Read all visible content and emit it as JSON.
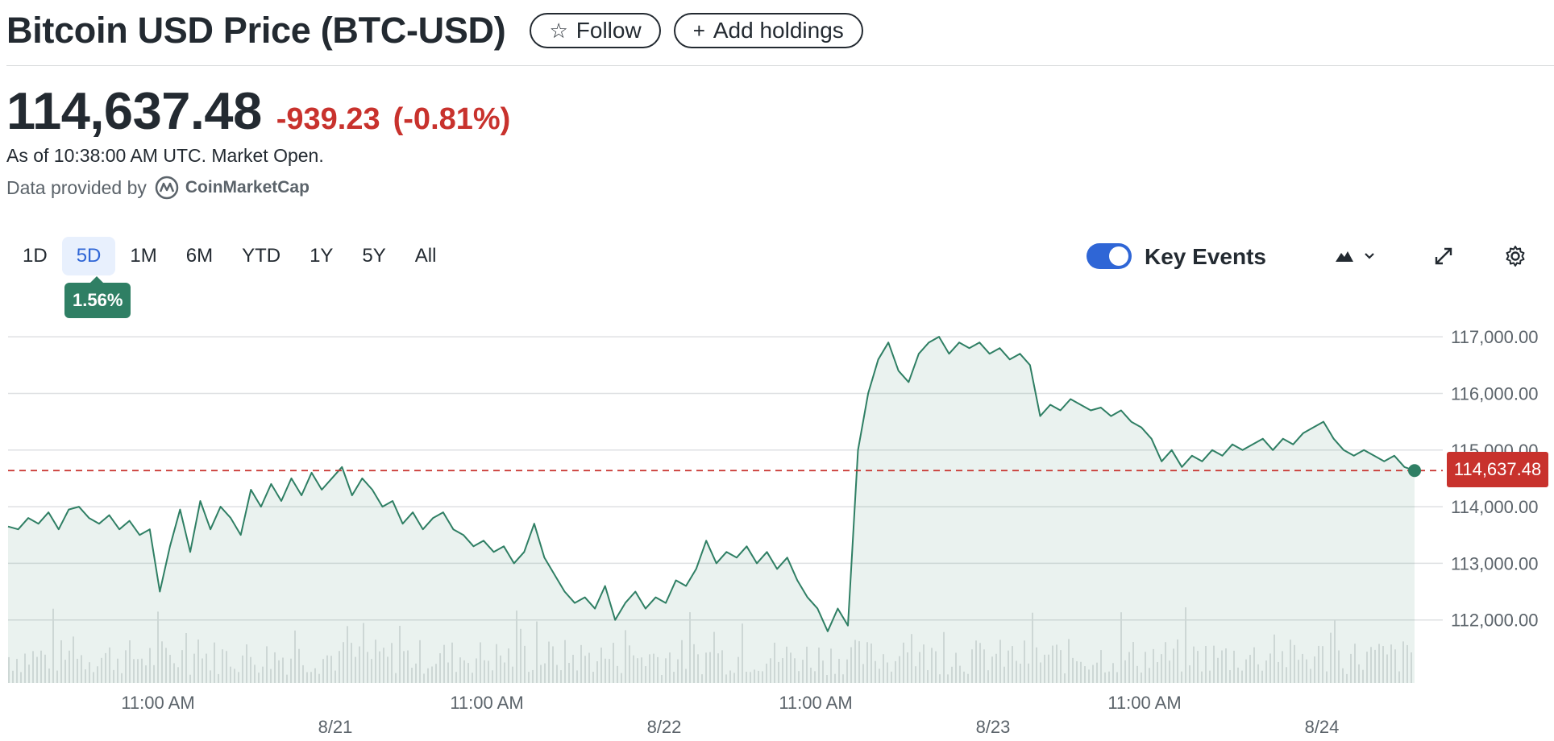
{
  "header": {
    "title": "Bitcoin USD Price (BTC-USD)",
    "follow_label": "Follow",
    "add_holdings_label": "Add holdings",
    "follow_icon": "star-outline-icon",
    "add_icon": "plus-icon"
  },
  "quote": {
    "price": "114,637.48",
    "change": "-939.23",
    "change_percent": "(-0.81%)",
    "as_of": "As of 10:38:00 AM UTC. Market Open.",
    "data_provided_by": "Data provided by",
    "provider_name": "CoinMarketCap",
    "negative_color": "#c8322d"
  },
  "ranges": {
    "items": [
      "1D",
      "5D",
      "1M",
      "6M",
      "YTD",
      "1Y",
      "5Y",
      "All"
    ],
    "active": "5D",
    "active_change": "1.56%"
  },
  "toolbar": {
    "key_events_label": "Key Events",
    "key_events_on": true,
    "chart_type_icon": "mountain-chart-icon",
    "expand_icon": "expand-icon",
    "settings_icon": "gear-icon"
  },
  "chart_data": {
    "type": "area",
    "y_ticks": [
      "117,000.00",
      "116,000.00",
      "115,000.00",
      "114,000.00",
      "113,000.00",
      "112,000.00"
    ],
    "y_tick_values": [
      117000,
      116000,
      115000,
      114000,
      113000,
      112000
    ],
    "ylim": [
      111000,
      117400
    ],
    "x_time_labels": [
      "11:00 AM",
      "11:00 AM",
      "11:00 AM",
      "11:00 AM"
    ],
    "x_date_labels": [
      "8/21",
      "8/22",
      "8/23",
      "8/24"
    ],
    "current_price_label": "114,637.48",
    "current_value": 114637.48,
    "line_color": "#2f7f64",
    "reference_line_color": "#c8322d",
    "series": [
      {
        "values": [
          113650,
          113600,
          113800,
          113700,
          113900,
          113600,
          113950,
          114000,
          113800,
          113700,
          113850,
          113600,
          113750,
          113500,
          113600,
          112500,
          113300,
          113950,
          113200,
          114100,
          113600,
          114000,
          113800,
          113500,
          114300,
          114000,
          114400,
          114100,
          114500,
          114200,
          114600,
          114300,
          114500,
          114700,
          114200,
          114500,
          114300,
          114000,
          114100,
          113700,
          113900,
          113600,
          113800,
          113900,
          113600,
          113500,
          113300,
          113400,
          113200,
          113300,
          113000,
          113200,
          113700,
          113100,
          112800,
          112500,
          112300,
          112400,
          112200,
          112600,
          112000,
          112300,
          112500,
          112200,
          112400,
          112300,
          112700,
          112600,
          112900,
          113400,
          113000,
          113200,
          113100,
          113300,
          113000,
          113200,
          112900,
          113100,
          112700,
          112400,
          112200,
          111800,
          112200,
          111900,
          115000,
          116000,
          116600,
          116900,
          116400,
          116200,
          116700,
          116900,
          117000,
          116700,
          116900,
          116800,
          116900,
          116700,
          116800,
          116600,
          116700,
          116500,
          115600,
          115800,
          115700,
          115900,
          115800,
          115700,
          115750,
          115600,
          115700,
          115500,
          115400,
          115200,
          114800,
          115000,
          114700,
          114900,
          114800,
          115000,
          114900,
          115100,
          115000,
          115100,
          115200,
          115000,
          115200,
          115100,
          115300,
          115400,
          115500,
          115200,
          115000,
          114900,
          115000,
          114900,
          114800,
          114900,
          114700,
          114637
        ]
      }
    ],
    "volume_bars_shown": true
  }
}
